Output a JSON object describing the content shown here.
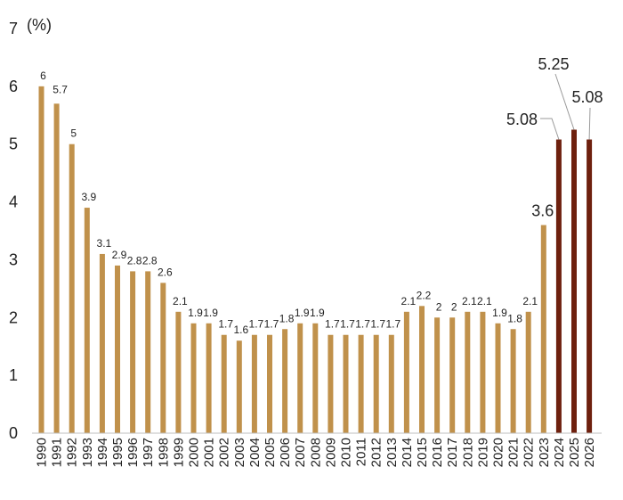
{
  "chart_data": {
    "type": "bar",
    "unit_label": "(%)",
    "ylim": [
      0,
      7
    ],
    "yticks": [
      0,
      1,
      2,
      3,
      4,
      5,
      6,
      7
    ],
    "grid": false,
    "legend": "none",
    "colors": {
      "historical": "#C0914B",
      "forecast": "#6E200E",
      "leader": "#9a9a9a",
      "axis": "#bfbfbf"
    },
    "categories": [
      "1990",
      "1991",
      "1992",
      "1993",
      "1994",
      "1995",
      "1996",
      "1997",
      "1998",
      "1999",
      "2000",
      "2001",
      "2002",
      "2003",
      "2004",
      "2005",
      "2006",
      "2007",
      "2008",
      "2009",
      "2010",
      "2011",
      "2012",
      "2013",
      "2014",
      "2015",
      "2016",
      "2017",
      "2018",
      "2019",
      "2020",
      "2021",
      "2022",
      "2023",
      "2024",
      "2025",
      "2026"
    ],
    "values": [
      6,
      5.7,
      5,
      3.9,
      3.1,
      2.9,
      2.8,
      2.8,
      2.6,
      2.1,
      1.9,
      1.9,
      1.7,
      1.6,
      1.7,
      1.7,
      1.8,
      1.9,
      1.9,
      1.7,
      1.7,
      1.7,
      1.7,
      1.7,
      2.1,
      2.2,
      2,
      2,
      2.1,
      2.1,
      1.9,
      1.8,
      2.1,
      3.6,
      5.08,
      5.25,
      5.08
    ],
    "labels": [
      "6",
      "5.7",
      "5",
      "3.9",
      "3.1",
      "2.9",
      "2.8",
      "2.8",
      "2.6",
      "2.1",
      "1.9",
      "1.9",
      "1.7",
      "1.6",
      "1.7",
      "1.7",
      "1.8",
      "1.9",
      "1.9",
      "1.7",
      "1.7",
      "1.7",
      "1.7",
      "1.7",
      "2.1",
      "2.2",
      "2",
      "2",
      "2.1",
      "2.1",
      "1.9",
      "1.8",
      "2.1",
      "3.6",
      "5.08",
      "5.25",
      "5.08"
    ],
    "forecast_start_index": 34
  }
}
